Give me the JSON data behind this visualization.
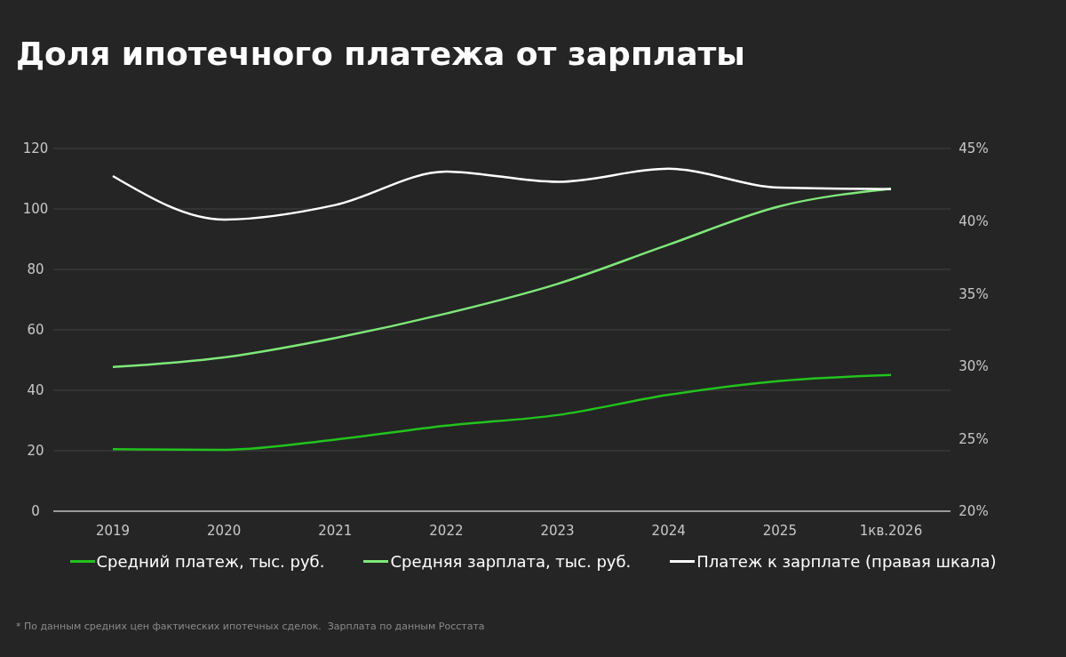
{
  "chart_data": {
    "type": "line",
    "title": "Доля ипотечного платежа от зарплаты",
    "categories": [
      "2019",
      "2020",
      "2021",
      "2022",
      "2023",
      "2024",
      "2025",
      "1кв.2026"
    ],
    "series": [
      {
        "name": "Средний платеж, тыс. руб.",
        "color": "#22c31e",
        "values": [
          20.5,
          20.3,
          23.7,
          28.3,
          31.8,
          38.5,
          43.1,
          45.1
        ]
      },
      {
        "name": "Средняя зарплата, тыс. руб.",
        "color": "#7fe87a",
        "values": [
          47.7,
          50.9,
          57.3,
          65.4,
          75.2,
          88.2,
          100.9,
          106.7
        ]
      },
      {
        "name": "Платеж к зарплате (правая шкала)",
        "color": "#ffffff",
        "axis": "y2",
        "values": [
          43.1,
          40.1,
          41.1,
          43.4,
          42.7,
          43.6,
          42.3,
          42.2
        ]
      }
    ],
    "ylim": [
      0,
      120
    ],
    "yticks": [
      0,
      20,
      40,
      60,
      80,
      100,
      120
    ],
    "y2lim": [
      20,
      45
    ],
    "y2ticks": [
      {
        "value": 20,
        "label": "20%"
      },
      {
        "value": 25,
        "label": "25%"
      },
      {
        "value": 30,
        "label": "30%"
      },
      {
        "value": 35,
        "label": "35%"
      },
      {
        "value": 40,
        "label": "40%"
      },
      {
        "value": 45,
        "label": "45%"
      }
    ],
    "grid": "y",
    "legend": "bottom",
    "marker": "none",
    "line_style": "solid",
    "annotations": [
      "* По данным средних цен фактических ипотечных сделок.  Зарплата по данным Росстата"
    ]
  }
}
